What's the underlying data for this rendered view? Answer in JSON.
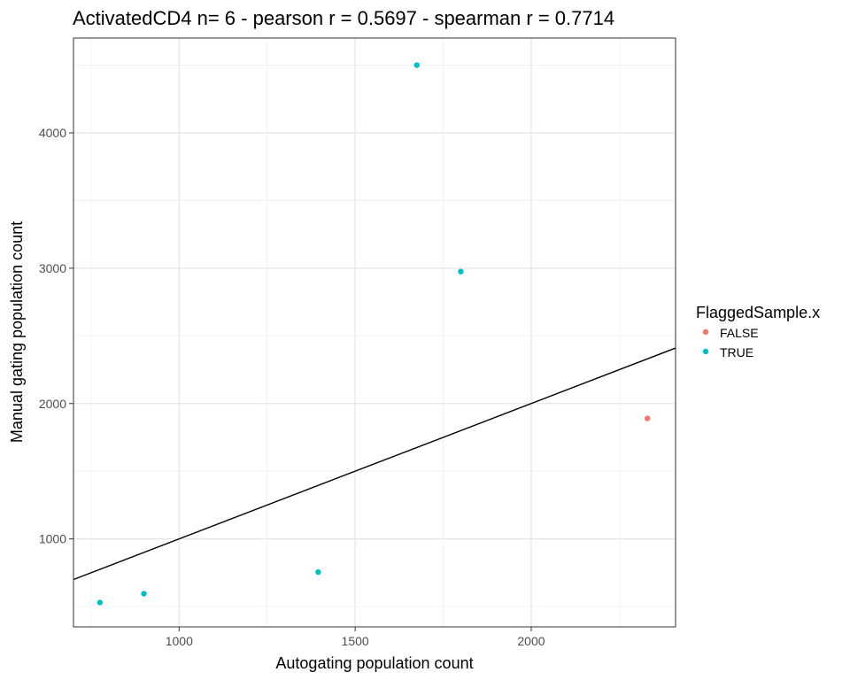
{
  "chart_data": {
    "type": "scatter",
    "title": "ActivatedCD4 n= 6 - pearson r = 0.5697 - spearman r = 0.7714",
    "xlabel": "Autogating population count",
    "ylabel": "Manual gating population count",
    "xlim": [
      700,
      2410
    ],
    "ylim": [
      350,
      4700
    ],
    "x_ticks": [
      1000,
      1500,
      2000
    ],
    "y_ticks": [
      1000,
      2000,
      3000,
      4000
    ],
    "x_tick_labels": [
      "1000",
      "1500",
      "2000"
    ],
    "y_tick_labels": [
      "1000",
      "2000",
      "3000",
      "4000"
    ],
    "grid": true,
    "legend": {
      "title": "FlaggedSample.x",
      "placement": "right",
      "entries": [
        {
          "label": "FALSE",
          "color": "#F8766D"
        },
        {
          "label": "TRUE",
          "color": "#00BFC4"
        }
      ]
    },
    "series": [
      {
        "name": "FALSE",
        "color": "#F8766D",
        "points": [
          {
            "x": 2330,
            "y": 1890
          }
        ]
      },
      {
        "name": "TRUE",
        "color": "#00BFC4",
        "points": [
          {
            "x": 775,
            "y": 530
          },
          {
            "x": 900,
            "y": 595
          },
          {
            "x": 1395,
            "y": 755
          },
          {
            "x": 1675,
            "y": 4500
          },
          {
            "x": 1800,
            "y": 2975
          }
        ]
      }
    ],
    "reference_line": {
      "slope": 1,
      "intercept": 0,
      "color": "#000000"
    }
  }
}
